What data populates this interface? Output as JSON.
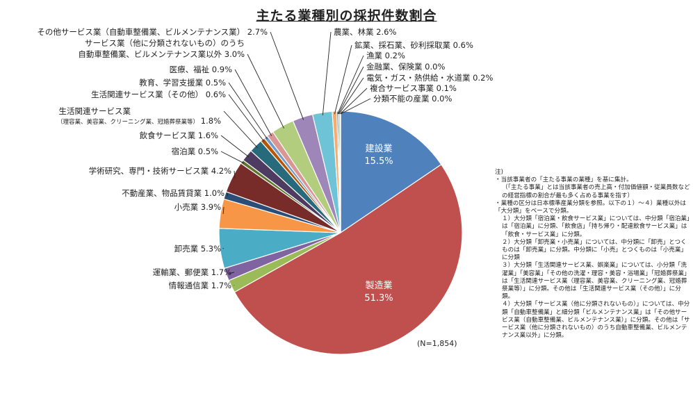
{
  "chart_data": {
    "type": "pie",
    "title": "主たる業種別の採択件数割合",
    "n_label": "(N=1,854)",
    "slices": [
      {
        "label": "建設業",
        "value": 15.5,
        "color": "#4f81bd"
      },
      {
        "label": "製造業",
        "value": 51.3,
        "color": "#c0504d"
      },
      {
        "label": "情報通信業",
        "value": 1.7,
        "color": "#9bbb59"
      },
      {
        "label": "運輸業、郵便業",
        "value": 1.7,
        "color": "#8064a2"
      },
      {
        "label": "卸売業",
        "value": 5.3,
        "color": "#4bacc6"
      },
      {
        "label": "小売業",
        "value": 3.9,
        "color": "#f79646"
      },
      {
        "label": "不動産業、物品賃貸業",
        "value": 1.0,
        "color": "#2c4d75"
      },
      {
        "label": "学術研究、専門・技術サービス業",
        "value": 4.2,
        "color": "#772c2a"
      },
      {
        "label": "宿泊業",
        "value": 0.5,
        "color": "#5f7530"
      },
      {
        "label": "飲食サービス業",
        "value": 1.6,
        "color": "#4d3b62"
      },
      {
        "label": "生活関連サービス業",
        "sublabel": "（理容業、美容業、クリーニング業、冠婚葬祭業等）",
        "value": 1.8,
        "color": "#276a7c"
      },
      {
        "label": "生活関連サービス業（その他）",
        "value": 0.6,
        "color": "#b65708"
      },
      {
        "label": "教育、学習支援業",
        "value": 0.5,
        "color": "#729aca"
      },
      {
        "label": "医療、福祉",
        "value": 0.9,
        "color": "#d99694"
      },
      {
        "label": "自動車整備業、ビルメンテナンス業以外",
        "label_line1": "サービス業（他に分類されないもの）のうち",
        "value": 3.0,
        "color": "#b3cd7e"
      },
      {
        "label": "その他サービス業（自動車整備業、ビルメンテナンス業）",
        "value": 2.7,
        "color": "#9e86b8"
      },
      {
        "label": "農業、林業",
        "value": 2.6,
        "color": "#6fc3d6"
      },
      {
        "label": "鉱業、採石業、砂利採取業",
        "value": 0.6,
        "color": "#f9ab6b"
      },
      {
        "label": "漁業",
        "value": 0.2,
        "color": "#3e6da4"
      },
      {
        "label": "金融業、保険業",
        "value": 0.0,
        "color": "#a0403d"
      },
      {
        "label": "電気・ガス・熱供給・水道業",
        "value": 0.2,
        "color": "#7f9c45"
      },
      {
        "label": "複合サービス事業",
        "value": 0.1,
        "color": "#66508a"
      },
      {
        "label": "分類不能の産業",
        "value": 0.0,
        "color": "#38a0b6"
      }
    ]
  },
  "notes": [
    "注)",
    "・当該事業者の「主たる事業の業種」を基に集計。",
    "（「主たる事業」とは当該事業者の売上高・付加価値額・従業員数などの経営指標の割合が最も多く占める事業を指す）",
    "・業種の区分は日本標準産業分類を参照。以下の１）～４）業種以外は「大分類」をベースで分類。",
    "１）大分類「宿泊業・飲食サービス業」については、中分類「宿泊業」は「宿泊業」に分類、「飲食店」「持ち帰り・配達飲食サービス業」は「飲食・サービス業」に分類。",
    "２）大分類「卸売業・小売業」については、中分類に「卸売」とつくものは「卸売業」に分類。中分類に「小売」とつくものは「小売業」に分類",
    "３）大分類「生活関連サービス業、娯楽業」については、小分類「洗濯業」「美容業」「その他の洗濯・理容・美容・浴場業」「冠婚葬祭業」は「生活関連サービス業（理容業、美容業、クリーニング業、冠婚葬祭業等）」に分類。その他は「生活関連サービス業（その他）」に分類。",
    "４）大分類「サービス業（他に分類されないもの）」については、中分類「自動車整備業」と細分類「ビルメンテナンス業」は「その他サービス業（自動車整備業、ビルメンテナンス業）」に分類。その他は「サービス業（他に分類されないもの）のうち自動車整備業、ビルメンテナンス業以外」に分類。"
  ]
}
